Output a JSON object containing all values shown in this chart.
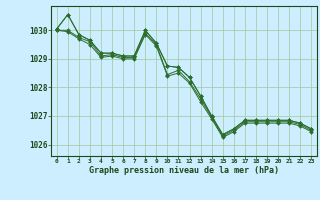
{
  "title": "Graphe pression niveau de la mer (hPa)",
  "background_color": "#cceeff",
  "grid_color": "#aaccaa",
  "line_color": "#2d6e2d",
  "marker_color": "#2d6e2d",
  "text_color": "#1a4a1a",
  "xlim": [
    -0.5,
    23.5
  ],
  "ylim": [
    1025.6,
    1030.85
  ],
  "yticks": [
    1026,
    1027,
    1028,
    1029,
    1030
  ],
  "xticks": [
    0,
    1,
    2,
    3,
    4,
    5,
    6,
    7,
    8,
    9,
    10,
    11,
    12,
    13,
    14,
    15,
    16,
    17,
    18,
    19,
    20,
    21,
    22,
    23
  ],
  "series": [
    [
      1030.05,
      1030.55,
      1029.85,
      1029.65,
      1029.2,
      1029.2,
      1029.1,
      1029.1,
      1030.0,
      1029.55,
      1028.75,
      1028.7,
      1028.35,
      1027.7,
      1027.0,
      1026.35,
      1026.55,
      1026.85,
      1026.85,
      1026.85,
      1026.85,
      1026.85,
      1026.75,
      1026.55
    ],
    [
      1030.05,
      1030.55,
      1029.85,
      1029.65,
      1029.2,
      1029.2,
      1029.1,
      1029.1,
      1030.0,
      1029.55,
      1028.75,
      1028.7,
      1028.35,
      1027.7,
      1027.0,
      1026.35,
      1026.55,
      1026.85,
      1026.85,
      1026.85,
      1026.85,
      1026.85,
      1026.75,
      1026.55
    ],
    [
      1030.0,
      1030.0,
      1029.75,
      1029.6,
      1029.1,
      1029.15,
      1029.05,
      1029.05,
      1029.9,
      1029.5,
      1028.45,
      1028.6,
      1028.2,
      1027.6,
      1026.95,
      1026.3,
      1026.5,
      1026.8,
      1026.8,
      1026.8,
      1026.8,
      1026.8,
      1026.7,
      1026.5
    ],
    [
      1030.0,
      1029.95,
      1029.7,
      1029.5,
      1029.05,
      1029.1,
      1029.0,
      1029.0,
      1029.85,
      1029.45,
      1028.4,
      1028.5,
      1028.15,
      1027.5,
      1026.9,
      1026.25,
      1026.45,
      1026.75,
      1026.75,
      1026.75,
      1026.75,
      1026.75,
      1026.65,
      1026.45
    ]
  ]
}
